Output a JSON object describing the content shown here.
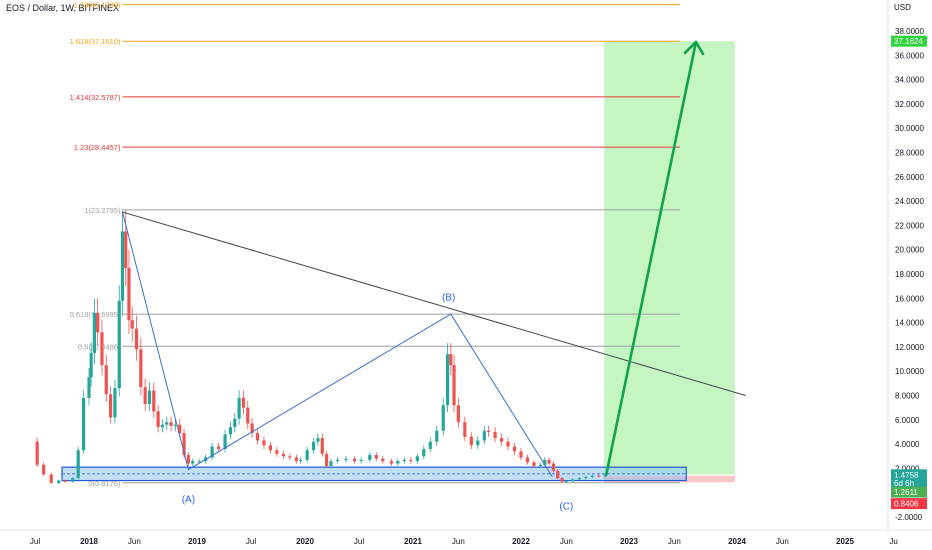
{
  "header": {
    "symbol": "EOS / Dollar, 1W, BITFINEX",
    "currency": "USD"
  },
  "chart_data": {
    "type": "line",
    "price_axis": {
      "ticks": [
        "38.0000",
        "36.0000",
        "34.0000",
        "32.0000",
        "30.0000",
        "28.0000",
        "26.0000",
        "24.0000",
        "22.0000",
        "20.0000",
        "18.0000",
        "16.0000",
        "14.0000",
        "12.0000",
        "10.0000",
        "8.0000",
        "6.0000",
        "4.0000",
        "2.0000",
        "-2.0000"
      ],
      "ylim": [
        -2.5,
        39.5
      ],
      "badges": [
        {
          "text": "37.1624",
          "value": 37.1624,
          "bg": "#2fd33b",
          "fg": "#ffffff"
        },
        {
          "text": "1.4758",
          "value": 1.4758,
          "bg": "#26a69a",
          "fg": "#ffffff"
        },
        {
          "text": "6d 6h",
          "value": 0.78,
          "bg": "#26a69a",
          "fg": "#ffffff"
        },
        {
          "text": "1.2611",
          "value": 0.05,
          "bg": "#4caf50",
          "fg": "#ffffff"
        },
        {
          "text": "0.8406",
          "value": -0.9,
          "bg": "#f23645",
          "fg": "#ffffff"
        }
      ]
    },
    "time_axis": {
      "ticks": [
        {
          "label": "Jul",
          "t": 2017.5
        },
        {
          "label": "2018",
          "t": 2018.0
        },
        {
          "label": "Jun",
          "t": 2018.42
        },
        {
          "label": "2019",
          "t": 2019.0
        },
        {
          "label": "Jul",
          "t": 2019.5
        },
        {
          "label": "2020",
          "t": 2020.0
        },
        {
          "label": "Jul",
          "t": 2020.5
        },
        {
          "label": "2021",
          "t": 2021.0
        },
        {
          "label": "Jun",
          "t": 2021.42
        },
        {
          "label": "2022",
          "t": 2022.0
        },
        {
          "label": "Jun",
          "t": 2022.42
        },
        {
          "label": "2023",
          "t": 2023.0
        },
        {
          "label": "Jun",
          "t": 2023.42
        },
        {
          "label": "2024",
          "t": 2024.0
        },
        {
          "label": "Jun",
          "t": 2024.42
        },
        {
          "label": "2025",
          "t": 2025.0
        },
        {
          "label": "Ju",
          "t": 2025.45
        }
      ]
    },
    "fib_levels": [
      {
        "label": "1.78(40.1709)",
        "value": 40.1709,
        "color": "#f7a21b"
      },
      {
        "label": "1.618(37.1610)",
        "value": 37.161,
        "color": "#f7a21b"
      },
      {
        "label": "1.414(32.5787)",
        "value": 32.5787,
        "color": "#e53935"
      },
      {
        "label": "1.23(28.4457)",
        "value": 28.4457,
        "color": "#e53935"
      },
      {
        "label": "1(23.2795)",
        "value": 23.2795,
        "color": "#9e9e9e"
      },
      {
        "label": "0.618(14.6995)",
        "value": 14.6995,
        "color": "#9e9e9e"
      },
      {
        "label": "0.5(12.0486)",
        "value": 12.0486,
        "color": "#9e9e9e"
      },
      {
        "label": "0(0.8176)",
        "value": 0.8176,
        "color": "#9e9e9e"
      }
    ],
    "wave_labels": [
      {
        "text": "(A)",
        "t": 2018.92,
        "v": -0.8
      },
      {
        "text": "(B)",
        "t": 2021.33,
        "v": 15.8
      },
      {
        "text": "(C)",
        "t": 2022.42,
        "v": -1.4
      }
    ],
    "wave_path": [
      {
        "t": 2018.31,
        "v": 23.1
      },
      {
        "t": 2018.92,
        "v": 1.9
      },
      {
        "t": 2021.35,
        "v": 14.7
      },
      {
        "t": 2022.29,
        "v": 1.3
      }
    ],
    "trendline": [
      {
        "t": 2018.31,
        "v": 23.1
      },
      {
        "t": 2024.08,
        "v": 8.0
      }
    ],
    "projection_arrow": [
      {
        "t": 2022.79,
        "v": 1.5
      },
      {
        "t": 2023.62,
        "v": 37.1
      }
    ],
    "target_zone": {
      "t0": 2022.77,
      "t1": 2023.98,
      "v0": 1.5,
      "v1": 37.16
    },
    "stop_zone": {
      "t0": 2022.77,
      "t1": 2023.98,
      "v0": 0.85,
      "v1": 1.4
    },
    "support_band": {
      "t0": 2017.75,
      "t1": 2023.53,
      "v0": 1.0,
      "v1": 2.1
    },
    "series": [
      {
        "values": [
          [
            2017.47,
            4.2
          ],
          [
            2017.52,
            2.3
          ],
          [
            2017.58,
            1.5
          ],
          [
            2017.65,
            0.8
          ],
          [
            2017.72,
            1.0
          ],
          [
            2017.78,
            0.9
          ],
          [
            2017.85,
            1.2
          ],
          [
            2017.9,
            3.5
          ],
          [
            2017.95,
            7.8
          ],
          [
            2018.0,
            9.5
          ],
          [
            2018.02,
            11.5
          ],
          [
            2018.05,
            14.8
          ],
          [
            2018.08,
            13.2
          ],
          [
            2018.12,
            10.5
          ],
          [
            2018.16,
            8.1
          ],
          [
            2018.2,
            6.2
          ],
          [
            2018.24,
            8.6
          ],
          [
            2018.28,
            15.8
          ],
          [
            2018.31,
            21.5
          ],
          [
            2018.34,
            18.5
          ],
          [
            2018.37,
            14.2
          ],
          [
            2018.4,
            13.5
          ],
          [
            2018.44,
            11.8
          ],
          [
            2018.48,
            8.7
          ],
          [
            2018.52,
            7.3
          ],
          [
            2018.56,
            8.4
          ],
          [
            2018.6,
            6.7
          ],
          [
            2018.64,
            5.4
          ],
          [
            2018.68,
            5.6
          ],
          [
            2018.72,
            5.8
          ],
          [
            2018.76,
            5.5
          ],
          [
            2018.8,
            5.6
          ],
          [
            2018.84,
            4.9
          ],
          [
            2018.88,
            3.1
          ],
          [
            2018.92,
            2.4
          ],
          [
            2018.96,
            2.6
          ],
          [
            2019.02,
            2.6
          ],
          [
            2019.08,
            2.9
          ],
          [
            2019.14,
            3.8
          ],
          [
            2019.2,
            3.6
          ],
          [
            2019.26,
            4.8
          ],
          [
            2019.31,
            5.4
          ],
          [
            2019.35,
            6.1
          ],
          [
            2019.39,
            7.8
          ],
          [
            2019.43,
            7.0
          ],
          [
            2019.47,
            5.7
          ],
          [
            2019.51,
            4.9
          ],
          [
            2019.56,
            4.3
          ],
          [
            2019.62,
            3.9
          ],
          [
            2019.68,
            3.5
          ],
          [
            2019.74,
            3.2
          ],
          [
            2019.8,
            3.0
          ],
          [
            2019.86,
            2.9
          ],
          [
            2019.92,
            2.6
          ],
          [
            2019.96,
            2.7
          ],
          [
            2020.02,
            3.5
          ],
          [
            2020.08,
            4.2
          ],
          [
            2020.12,
            4.5
          ],
          [
            2020.16,
            3.2
          ],
          [
            2020.2,
            2.2
          ],
          [
            2020.24,
            2.6
          ],
          [
            2020.3,
            2.7
          ],
          [
            2020.38,
            2.8
          ],
          [
            2020.46,
            2.6
          ],
          [
            2020.52,
            2.7
          ],
          [
            2020.6,
            3.1
          ],
          [
            2020.66,
            2.8
          ],
          [
            2020.72,
            2.6
          ],
          [
            2020.8,
            2.4
          ],
          [
            2020.86,
            2.6
          ],
          [
            2020.92,
            2.7
          ],
          [
            2020.98,
            2.6
          ],
          [
            2021.04,
            3.0
          ],
          [
            2021.1,
            3.6
          ],
          [
            2021.16,
            4.2
          ],
          [
            2021.22,
            5.1
          ],
          [
            2021.28,
            7.2
          ],
          [
            2021.32,
            11.4
          ],
          [
            2021.35,
            10.5
          ],
          [
            2021.38,
            7.2
          ],
          [
            2021.42,
            5.8
          ],
          [
            2021.48,
            4.6
          ],
          [
            2021.54,
            3.9
          ],
          [
            2021.6,
            4.3
          ],
          [
            2021.66,
            5.1
          ],
          [
            2021.7,
            5.0
          ],
          [
            2021.76,
            4.5
          ],
          [
            2021.82,
            4.2
          ],
          [
            2021.88,
            3.8
          ],
          [
            2021.94,
            3.4
          ],
          [
            2022.0,
            2.9
          ],
          [
            2022.06,
            2.5
          ],
          [
            2022.12,
            2.2
          ],
          [
            2022.18,
            2.3
          ],
          [
            2022.22,
            2.7
          ],
          [
            2022.26,
            2.4
          ],
          [
            2022.3,
            1.8
          ],
          [
            2022.34,
            1.2
          ],
          [
            2022.38,
            0.9
          ],
          [
            2022.42,
            0.95
          ],
          [
            2022.48,
            1.1
          ],
          [
            2022.54,
            1.2
          ],
          [
            2022.6,
            1.3
          ],
          [
            2022.66,
            1.4
          ],
          [
            2022.72,
            1.35
          ],
          [
            2022.78,
            1.47
          ]
        ]
      }
    ]
  }
}
